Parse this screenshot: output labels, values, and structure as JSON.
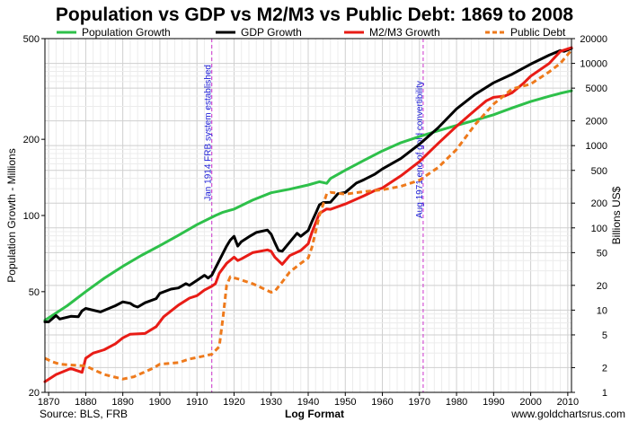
{
  "chart_data": {
    "type": "line",
    "title": "Population vs GDP vs M2/M3 vs Public Debt: 1869 to 2008",
    "ylabel_left": "Population Growth - Millions",
    "ylabel_right": "Billions US$",
    "xlabel": "Log Format",
    "source": "Source: BLS, FRB",
    "website": "www.goldchartsrus.com",
    "left_scale": "log",
    "right_scale": "log",
    "xlim": [
      1869,
      2011
    ],
    "ylim_left": [
      20,
      500
    ],
    "ylim_right": [
      1,
      20000
    ],
    "x_ticks": [
      1870,
      1880,
      1890,
      1900,
      1910,
      1920,
      1930,
      1940,
      1950,
      1960,
      1970,
      1980,
      1990,
      2000,
      2010
    ],
    "left_ticks": [
      20,
      50,
      100,
      200,
      500
    ],
    "right_ticks": [
      1,
      2,
      5,
      10,
      20,
      50,
      100,
      200,
      500,
      1000,
      2000,
      5000,
      10000,
      20000
    ],
    "legend_position": "top",
    "grid": true,
    "annotations": [
      {
        "x": 1914,
        "text": "Jan 1914 FRB system established"
      },
      {
        "x": 1971,
        "text": "Aug 1971 end of gold convertibility"
      }
    ],
    "series": [
      {
        "name": "Population Growth",
        "axis": "left",
        "color": "#2ec04a",
        "style": "solid",
        "points": [
          [
            1869,
            38.5
          ],
          [
            1875,
            44
          ],
          [
            1880,
            50
          ],
          [
            1885,
            56.5
          ],
          [
            1890,
            63
          ],
          [
            1895,
            69.5
          ],
          [
            1900,
            76
          ],
          [
            1905,
            83.5
          ],
          [
            1910,
            92
          ],
          [
            1915,
            100
          ],
          [
            1917,
            103
          ],
          [
            1920,
            106
          ],
          [
            1925,
            115
          ],
          [
            1930,
            123
          ],
          [
            1935,
            127
          ],
          [
            1940,
            132
          ],
          [
            1943,
            136
          ],
          [
            1945,
            134
          ],
          [
            1946,
            140
          ],
          [
            1950,
            151
          ],
          [
            1955,
            165
          ],
          [
            1960,
            180
          ],
          [
            1965,
            194
          ],
          [
            1970,
            205
          ],
          [
            1975,
            216
          ],
          [
            1980,
            227
          ],
          [
            1985,
            238
          ],
          [
            1990,
            250
          ],
          [
            1995,
            266
          ],
          [
            2000,
            282
          ],
          [
            2005,
            296
          ],
          [
            2008,
            304
          ],
          [
            2011,
            311
          ]
        ]
      },
      {
        "name": "GDP Growth",
        "axis": "right",
        "color": "#000000",
        "style": "solid",
        "points": [
          [
            1869,
            7.2
          ],
          [
            1870,
            7.2
          ],
          [
            1872,
            8.6
          ],
          [
            1873,
            7.8
          ],
          [
            1876,
            8.4
          ],
          [
            1878,
            8.3
          ],
          [
            1879,
            9.8
          ],
          [
            1880,
            10.5
          ],
          [
            1884,
            9.5
          ],
          [
            1888,
            11.3
          ],
          [
            1890,
            12.6
          ],
          [
            1892,
            12.1
          ],
          [
            1893,
            11.3
          ],
          [
            1894,
            10.9
          ],
          [
            1896,
            12.3
          ],
          [
            1899,
            13.8
          ],
          [
            1900,
            16
          ],
          [
            1903,
            18
          ],
          [
            1905,
            18.6
          ],
          [
            1907,
            21
          ],
          [
            1908,
            20
          ],
          [
            1910,
            23
          ],
          [
            1912,
            26.5
          ],
          [
            1913,
            24.5
          ],
          [
            1914,
            26.5
          ],
          [
            1916,
            40
          ],
          [
            1918,
            60
          ],
          [
            1919,
            71
          ],
          [
            1920,
            79
          ],
          [
            1921,
            60
          ],
          [
            1922,
            68
          ],
          [
            1924,
            78
          ],
          [
            1926,
            88
          ],
          [
            1929,
            94
          ],
          [
            1930,
            84
          ],
          [
            1931,
            66
          ],
          [
            1932,
            53
          ],
          [
            1933,
            52
          ],
          [
            1935,
            67
          ],
          [
            1937,
            86
          ],
          [
            1938,
            79
          ],
          [
            1940,
            93
          ],
          [
            1941,
            119
          ],
          [
            1942,
            150
          ],
          [
            1943,
            190
          ],
          [
            1944,
            203
          ],
          [
            1946,
            205
          ],
          [
            1948,
            260
          ],
          [
            1950,
            270
          ],
          [
            1953,
            350
          ],
          [
            1955,
            385
          ],
          [
            1958,
            450
          ],
          [
            1960,
            520
          ],
          [
            1965,
            700
          ],
          [
            1970,
            1040
          ],
          [
            1975,
            1640
          ],
          [
            1980,
            2800
          ],
          [
            1985,
            4200
          ],
          [
            1990,
            5800
          ],
          [
            1995,
            7400
          ],
          [
            2000,
            9800
          ],
          [
            2005,
            12600
          ],
          [
            2008,
            14300
          ],
          [
            2009,
            14000
          ],
          [
            2011,
            15200
          ]
        ]
      },
      {
        "name": "M2/M3 Growth",
        "axis": "right",
        "color": "#e81c16",
        "style": "solid",
        "points": [
          [
            1869,
            1.35
          ],
          [
            1872,
            1.65
          ],
          [
            1876,
            1.95
          ],
          [
            1879,
            1.75
          ],
          [
            1880,
            2.6
          ],
          [
            1882,
            3.0
          ],
          [
            1885,
            3.3
          ],
          [
            1888,
            3.9
          ],
          [
            1890,
            4.6
          ],
          [
            1892,
            5.1
          ],
          [
            1896,
            5.2
          ],
          [
            1899,
            6.3
          ],
          [
            1901,
            8.3
          ],
          [
            1905,
            11.5
          ],
          [
            1908,
            14
          ],
          [
            1910,
            15
          ],
          [
            1912,
            17.5
          ],
          [
            1914,
            19.5
          ],
          [
            1915,
            21
          ],
          [
            1916,
            28
          ],
          [
            1918,
            37
          ],
          [
            1920,
            44
          ],
          [
            1921,
            40
          ],
          [
            1922,
            42
          ],
          [
            1925,
            50
          ],
          [
            1929,
            54
          ],
          [
            1930,
            52
          ],
          [
            1931,
            44
          ],
          [
            1933,
            36
          ],
          [
            1935,
            46
          ],
          [
            1938,
            53
          ],
          [
            1940,
            64
          ],
          [
            1941,
            88
          ],
          [
            1943,
            150
          ],
          [
            1945,
            170
          ],
          [
            1946,
            168
          ],
          [
            1950,
            195
          ],
          [
            1955,
            245
          ],
          [
            1958,
            285
          ],
          [
            1960,
            305
          ],
          [
            1965,
            430
          ],
          [
            1970,
            640
          ],
          [
            1975,
            1060
          ],
          [
            1980,
            1720
          ],
          [
            1985,
            2700
          ],
          [
            1988,
            3500
          ],
          [
            1990,
            3860
          ],
          [
            1993,
            4000
          ],
          [
            1995,
            4400
          ],
          [
            1998,
            5700
          ],
          [
            2000,
            7000
          ],
          [
            2005,
            10000
          ],
          [
            2008,
            14000
          ],
          [
            2011,
            15500
          ]
        ]
      },
      {
        "name": "Public Debt",
        "axis": "right",
        "color": "#ee7a1c",
        "style": "dashed",
        "points": [
          [
            1869,
            2.6
          ],
          [
            1871,
            2.35
          ],
          [
            1873,
            2.2
          ],
          [
            1876,
            2.15
          ],
          [
            1880,
            2.1
          ],
          [
            1882,
            1.9
          ],
          [
            1885,
            1.65
          ],
          [
            1890,
            1.45
          ],
          [
            1893,
            1.55
          ],
          [
            1895,
            1.7
          ],
          [
            1898,
            1.95
          ],
          [
            1900,
            2.2
          ],
          [
            1905,
            2.3
          ],
          [
            1908,
            2.55
          ],
          [
            1910,
            2.65
          ],
          [
            1914,
            2.9
          ],
          [
            1916,
            3.6
          ],
          [
            1917,
            8
          ],
          [
            1918,
            20
          ],
          [
            1919,
            25.5
          ],
          [
            1921,
            24
          ],
          [
            1925,
            21
          ],
          [
            1930,
            16.5
          ],
          [
            1931,
            17
          ],
          [
            1933,
            22
          ],
          [
            1935,
            29
          ],
          [
            1938,
            37
          ],
          [
            1940,
            43
          ],
          [
            1941,
            58
          ],
          [
            1943,
            140
          ],
          [
            1945,
            260
          ],
          [
            1946,
            270
          ],
          [
            1950,
            257
          ],
          [
            1955,
            275
          ],
          [
            1960,
            290
          ],
          [
            1965,
            320
          ],
          [
            1970,
            380
          ],
          [
            1975,
            540
          ],
          [
            1980,
            900
          ],
          [
            1985,
            1800
          ],
          [
            1990,
            3200
          ],
          [
            1995,
            4900
          ],
          [
            2000,
            5600
          ],
          [
            2005,
            7900
          ],
          [
            2008,
            10000
          ],
          [
            2011,
            14500
          ]
        ]
      }
    ]
  }
}
